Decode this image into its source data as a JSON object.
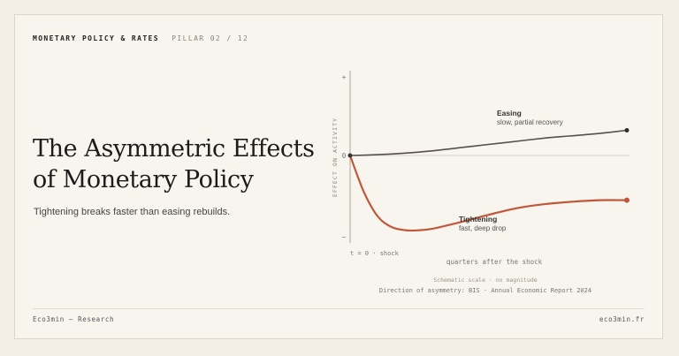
{
  "header": {
    "kicker": "MONETARY POLICY & RATES",
    "pillar": "PILLAR 02 / 12"
  },
  "title_line1": "The Asymmetric Effects",
  "title_line2": "of Monetary Policy",
  "subtitle": "Tightening breaks faster than easing rebuilds.",
  "footer": {
    "left": "Eco3min — Research",
    "right": "eco3min.fr"
  },
  "colors": {
    "easing": "#55504a",
    "tightening": "#c0573a",
    "axis": "#9a958b"
  },
  "chart_data": {
    "type": "line",
    "ylabel": "EFFECT ON ACTIVITY",
    "xlabel": "quarters after the shock",
    "y_ticks": [
      "+",
      "0",
      "−"
    ],
    "shock_label": "t = 0 · shock",
    "note": "Schematic scale · no magnitude",
    "source": "Direction of asymmetry: BIS · Annual Economic Report 2024",
    "x_range": [
      0,
      20
    ],
    "y_range": [
      -1,
      1
    ],
    "series": [
      {
        "name": "Easing",
        "description": "slow, partial recovery",
        "x": [
          0,
          2,
          4,
          6,
          8,
          10,
          12,
          14,
          16,
          18,
          20
        ],
        "y": [
          0,
          0.01,
          0.03,
          0.06,
          0.1,
          0.14,
          0.18,
          0.22,
          0.25,
          0.28,
          0.32
        ]
      },
      {
        "name": "Tightening",
        "description": "fast, deep drop",
        "x": [
          0,
          1,
          2,
          3,
          4,
          5,
          6,
          8,
          10,
          12,
          14,
          16,
          18,
          20
        ],
        "y": [
          0,
          -0.45,
          -0.75,
          -0.88,
          -0.92,
          -0.92,
          -0.9,
          -0.82,
          -0.73,
          -0.65,
          -0.6,
          -0.57,
          -0.55,
          -0.55
        ]
      }
    ]
  }
}
